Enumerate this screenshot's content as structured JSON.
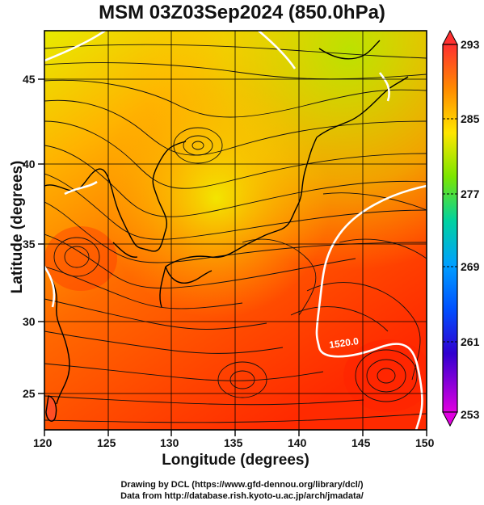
{
  "title": "MSM 03Z03Sep2024 (850.0hPa)",
  "x_axis": {
    "label": "Longitude (degrees)",
    "ticks": [
      "120",
      "125",
      "130",
      "135",
      "140",
      "145",
      "150"
    ]
  },
  "y_axis": {
    "label": "Latitude  (degrees)",
    "ticks": [
      "25",
      "30",
      "35",
      "40",
      "45"
    ]
  },
  "colorbar": {
    "ticks": [
      "293",
      "285",
      "277",
      "269",
      "261",
      "253"
    ],
    "min": 253,
    "max": 293
  },
  "contour_label": "1520.0",
  "credits": {
    "line1": "Drawing by DCL (https://www.gfd-dennou.org/library/dcl/)",
    "line2": "Data from http://database.rish.kyoto-u.ac.jp/arch/jmadata/"
  },
  "map": {
    "lon_range": [
      120,
      150
    ],
    "lat_range": [
      22.5,
      47.5
    ],
    "field": "temperature (K) with streamlines and geopotential height contour",
    "colors": {
      "warm": "#ff3300",
      "mid": "#ff9900",
      "cool": "#d7e600",
      "coast": "#000000",
      "contour": "#ffffff"
    }
  }
}
